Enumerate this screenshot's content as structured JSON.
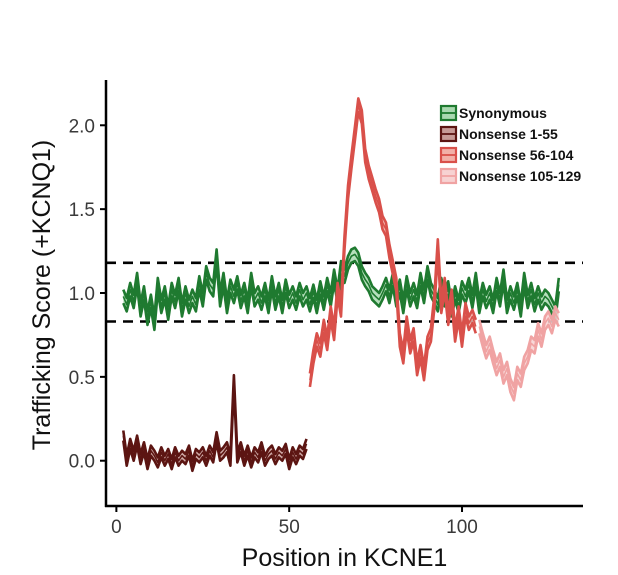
{
  "chart_data": {
    "type": "line",
    "xlabel": "Position in KCNE1",
    "ylabel": "Trafficking Score (+KCNQ1)",
    "xlim": [
      -3,
      135
    ],
    "ylim": [
      -0.27,
      2.27
    ],
    "xticks": [
      0,
      50,
      100
    ],
    "yticks": [
      0.0,
      0.5,
      1.0,
      1.5,
      2.0
    ],
    "ytick_labels": [
      "0.0",
      "0.5",
      "1.0",
      "1.5",
      "2.0"
    ],
    "reference_lines": [
      1.18,
      0.83
    ],
    "legend_position": "top-right",
    "series": [
      {
        "name": "Synonymous",
        "color": "#1f7a30",
        "fill": "#a9d9b0",
        "x": [
          2,
          3,
          4,
          5,
          6,
          7,
          8,
          9,
          10,
          11,
          12,
          13,
          14,
          15,
          16,
          17,
          18,
          19,
          20,
          21,
          22,
          23,
          24,
          25,
          26,
          27,
          28,
          29,
          30,
          31,
          32,
          33,
          34,
          35,
          36,
          37,
          38,
          39,
          40,
          41,
          42,
          43,
          44,
          45,
          46,
          47,
          48,
          49,
          50,
          51,
          52,
          53,
          54,
          55,
          56,
          57,
          58,
          59,
          60,
          61,
          62,
          63,
          64,
          65,
          66,
          67,
          68,
          69,
          70,
          71,
          72,
          73,
          74,
          75,
          76,
          77,
          78,
          79,
          80,
          81,
          82,
          83,
          84,
          85,
          86,
          87,
          88,
          89,
          90,
          91,
          92,
          93,
          94,
          95,
          96,
          97,
          98,
          99,
          100,
          101,
          102,
          103,
          104,
          105,
          106,
          107,
          108,
          109,
          110,
          111,
          112,
          113,
          114,
          115,
          116,
          117,
          118,
          119,
          120,
          121,
          122,
          123,
          124,
          125,
          126,
          127,
          128
        ],
        "mean": [
          0.98,
          0.93,
          1.02,
          0.95,
          1.08,
          0.9,
          1.0,
          0.85,
          0.95,
          0.82,
          1.05,
          0.92,
          1.0,
          0.88,
          1.02,
          0.95,
          1.05,
          0.9,
          1.0,
          0.92,
          0.98,
          0.93,
          1.06,
          0.96,
          1.12,
          1.05,
          1.02,
          1.22,
          0.96,
          1.08,
          0.92,
          1.04,
          0.98,
          1.06,
          0.95,
          1.02,
          0.92,
          1.08,
          0.96,
          1.0,
          0.94,
          1.02,
          0.92,
          1.06,
          0.94,
          1.02,
          0.92,
          1.04,
          0.95,
          1.0,
          0.94,
          1.02,
          0.96,
          1.0,
          0.93,
          1.01,
          0.92,
          1.03,
          0.94,
          1.05,
          0.96,
          1.1,
          0.98,
          1.15,
          1.1,
          1.18,
          1.22,
          1.23,
          1.2,
          1.12,
          1.08,
          1.05,
          1.0,
          0.98,
          0.96,
          1.0,
          1.05,
          0.98,
          1.08,
          0.96,
          1.04,
          0.92,
          1.06,
          0.96,
          1.02,
          0.95,
          1.08,
          0.98,
          1.12,
          1.02,
          0.98,
          0.93,
          1.05,
          0.96,
          1.03,
          0.9,
          1.0,
          0.92,
          1.03,
          0.98,
          1.05,
          0.95,
          1.08,
          0.92,
          1.02,
          0.95,
          1.0,
          0.92,
          1.05,
          0.96,
          1.1,
          0.92,
          1.0,
          0.94,
          1.02,
          0.9,
          1.08,
          0.95,
          1.02,
          0.93,
          1.0,
          0.94,
          0.98,
          0.96,
          0.92,
          0.88,
          1.05
        ],
        "halfwidth": 0.04
      },
      {
        "name": "Nonsense 1-55",
        "color": "#5c1512",
        "fill": "#c79a96",
        "x": [
          2,
          3,
          4,
          5,
          6,
          7,
          8,
          9,
          10,
          11,
          12,
          13,
          14,
          15,
          16,
          17,
          18,
          19,
          20,
          21,
          22,
          23,
          24,
          25,
          26,
          27,
          28,
          29,
          30,
          31,
          32,
          33,
          34,
          35,
          36,
          37,
          38,
          39,
          40,
          41,
          42,
          43,
          44,
          45,
          46,
          47,
          48,
          49,
          50,
          51,
          52,
          53,
          54,
          55
        ],
        "mean": [
          0.15,
          0.0,
          0.1,
          0.03,
          0.12,
          0.01,
          0.08,
          -0.02,
          0.06,
          0.03,
          -0.01,
          0.05,
          0.0,
          0.04,
          -0.02,
          0.05,
          0.0,
          0.03,
          0.01,
          0.06,
          -0.03,
          0.04,
          0.02,
          0.05,
          0.0,
          0.06,
          0.02,
          0.14,
          0.03,
          0.05,
          0.08,
          0.0,
          0.48,
          0.02,
          0.08,
          0.0,
          0.06,
          -0.01,
          0.05,
          0.02,
          0.08,
          0.0,
          0.04,
          0.06,
          0.01,
          0.05,
          0.03,
          0.07,
          -0.02,
          0.05,
          0.01,
          0.06,
          0.04,
          0.1
        ],
        "halfwidth": 0.03
      },
      {
        "name": "Nonsense 56-104",
        "color": "#d9504a",
        "fill": "#f2b0a8",
        "x": [
          56,
          57,
          58,
          59,
          60,
          61,
          62,
          63,
          64,
          65,
          66,
          67,
          68,
          69,
          70,
          71,
          72,
          73,
          74,
          75,
          76,
          77,
          78,
          79,
          80,
          81,
          82,
          83,
          84,
          85,
          86,
          87,
          88,
          89,
          90,
          91,
          92,
          93,
          94,
          95,
          96,
          97,
          98,
          99,
          100,
          101,
          102,
          103,
          104
        ],
        "mean": [
          0.48,
          0.62,
          0.72,
          0.66,
          0.8,
          0.7,
          0.88,
          0.76,
          1.02,
          0.9,
          1.3,
          1.6,
          1.78,
          1.95,
          2.12,
          2.05,
          1.82,
          1.72,
          1.65,
          1.58,
          1.52,
          1.42,
          1.38,
          1.25,
          1.15,
          1.05,
          0.72,
          0.62,
          0.82,
          0.68,
          0.75,
          0.55,
          0.65,
          0.52,
          0.7,
          0.75,
          0.95,
          1.28,
          0.92,
          1.05,
          0.85,
          0.98,
          0.75,
          0.88,
          0.72,
          0.9,
          0.82,
          0.86,
          0.8
        ],
        "halfwidth": 0.04
      },
      {
        "name": "Nonsense 105-129",
        "color": "#f0a3a3",
        "fill": "#f7d2d2",
        "x": [
          105,
          106,
          107,
          108,
          109,
          110,
          111,
          112,
          113,
          114,
          115,
          116,
          117,
          118,
          119,
          120,
          121,
          122,
          123,
          124,
          125,
          126,
          127,
          128
        ],
        "mean": [
          0.8,
          0.72,
          0.65,
          0.7,
          0.62,
          0.55,
          0.6,
          0.5,
          0.55,
          0.45,
          0.4,
          0.52,
          0.48,
          0.58,
          0.62,
          0.7,
          0.68,
          0.78,
          0.72,
          0.82,
          0.85,
          0.8,
          0.88,
          0.84
        ],
        "halfwidth": 0.04
      }
    ]
  }
}
